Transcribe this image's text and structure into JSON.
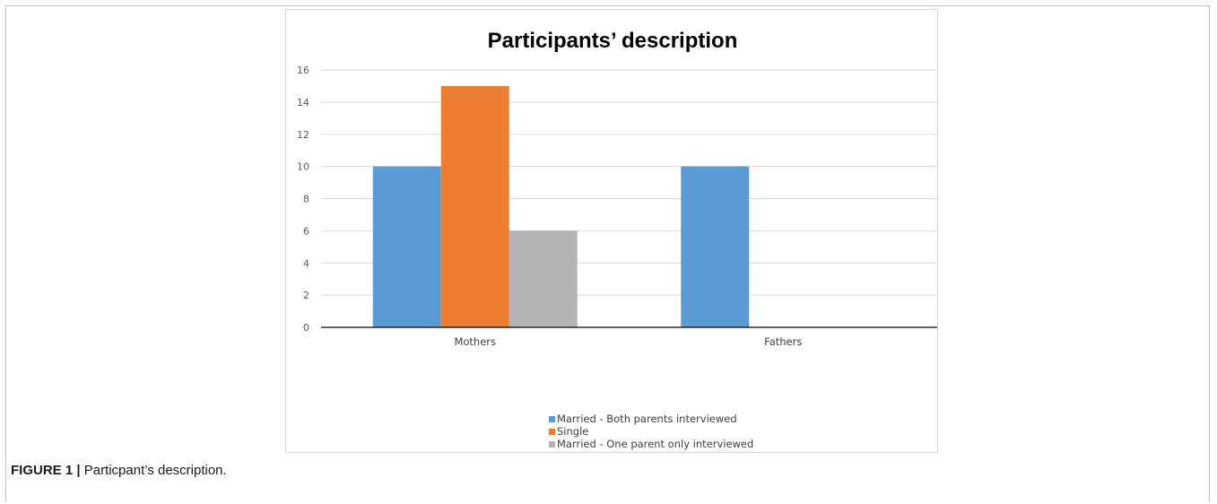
{
  "chart_data": {
    "type": "bar",
    "title": "Participants’ description",
    "categories": [
      "Mothers",
      "Fathers"
    ],
    "series": [
      {
        "name": "Married - Both parents interviewed",
        "color": "#5b9bd5",
        "values": [
          10,
          10
        ]
      },
      {
        "name": "Single",
        "color": "#ed7d31",
        "values": [
          15,
          0
        ]
      },
      {
        "name": "Married - One parent only interviewed",
        "color": "#b4b4b4",
        "values": [
          6,
          0
        ]
      }
    ],
    "ylim": [
      0,
      16
    ],
    "yticks": [
      0,
      2,
      4,
      6,
      8,
      10,
      12,
      14,
      16
    ],
    "grid": true,
    "legend_position": "bottom"
  },
  "caption": {
    "label": "FIGURE 1 |",
    "text": "Particpant’s description."
  }
}
